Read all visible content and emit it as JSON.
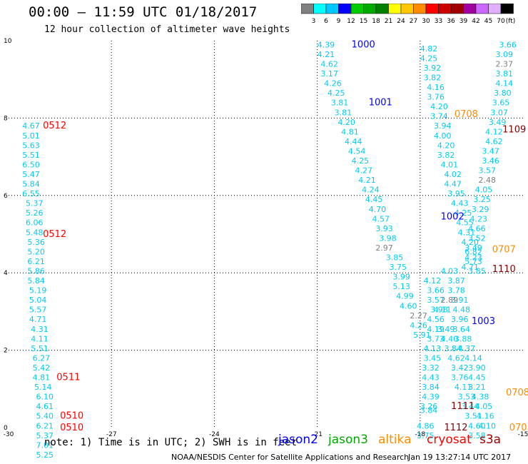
{
  "header": {
    "title": "00:00 – 11:59 UTC 01/18/2017",
    "subtitle": "12 hour collection of altimeter wave heights"
  },
  "colorbar": {
    "colors": [
      "#808080",
      "#00ffff",
      "#00c8ff",
      "#0000ff",
      "#00cc00",
      "#00aa00",
      "#008000",
      "#ffff00",
      "#ffc800",
      "#ff8c00",
      "#ff0000",
      "#cc0000",
      "#a00000",
      "#a000a0",
      "#cc66ff",
      "#e0b0ff",
      "#000000"
    ],
    "labels": [
      "3",
      "6",
      "9",
      "12",
      "15",
      "18",
      "21",
      "24",
      "27",
      "30",
      "33",
      "36",
      "39",
      "42",
      "45",
      "70"
    ],
    "unit": "(ft)"
  },
  "footer": {
    "note": "note: 1) Time is in UTC; 2) SWH is in feet",
    "credit": "NOAA/NESDIS Center for Satellite Applications and Research",
    "timestamp": "Jan 19 13:27:14 UTC 2017"
  },
  "legend": [
    {
      "name": "jason2",
      "color": "#0000ff"
    },
    {
      "name": "jason3",
      "color": "#00aa00"
    },
    {
      "name": "altika",
      "color": "#ff8c00"
    },
    {
      "name": "cryosat",
      "color": "#ff0000"
    },
    {
      "name": "s3a",
      "color": "#a00000"
    }
  ],
  "chart_data": {
    "type": "scatter",
    "xlim": [
      -30,
      -15
    ],
    "ylim": [
      0,
      10
    ],
    "xticks": [
      -30,
      -27,
      -24,
      -21,
      -18,
      -15
    ],
    "yticks": [
      0,
      2,
      4,
      6,
      8,
      10
    ],
    "grid": true,
    "labels": [
      {
        "text": "0512",
        "x": -29.0,
        "y": 7.8,
        "color": "#ff0000",
        "size": 13
      },
      {
        "text": "0512",
        "x": -29.0,
        "y": 5.0,
        "color": "#ff0000",
        "size": 13
      },
      {
        "text": "0511",
        "x": -28.6,
        "y": 1.3,
        "color": "#ff0000",
        "size": 13
      },
      {
        "text": "0510",
        "x": -28.5,
        "y": 0.3,
        "color": "#ff0000",
        "size": 13
      },
      {
        "text": "0510",
        "x": -28.5,
        "y": 0.0,
        "color": "#ff0000",
        "size": 13
      },
      {
        "text": "1000",
        "x": -20.0,
        "y": 9.9,
        "color": "#0000ff",
        "size": 13
      },
      {
        "text": "1001",
        "x": -19.5,
        "y": 8.4,
        "color": "#0000ff",
        "size": 13
      },
      {
        "text": "1002",
        "x": -17.4,
        "y": 5.45,
        "color": "#0000ff",
        "size": 13
      },
      {
        "text": "1003",
        "x": -16.5,
        "y": 2.75,
        "color": "#0000ff",
        "size": 13
      },
      {
        "text": "0708",
        "x": -17.0,
        "y": 8.1,
        "color": "#ff8c00",
        "size": 13
      },
      {
        "text": "0707",
        "x": -15.9,
        "y": 4.6,
        "color": "#ff8c00",
        "size": 13
      },
      {
        "text": "0708",
        "x": -15.5,
        "y": 0.9,
        "color": "#ff8c00",
        "size": 13
      },
      {
        "text": "070",
        "x": -15.4,
        "y": 0.0,
        "color": "#ff8c00",
        "size": 13
      },
      {
        "text": "1109",
        "x": -15.6,
        "y": 7.7,
        "color": "#800000",
        "size": 13
      },
      {
        "text": "1110",
        "x": -15.9,
        "y": 4.1,
        "color": "#800000",
        "size": 13
      },
      {
        "text": "1111",
        "x": -17.1,
        "y": 0.55,
        "color": "#800000",
        "size": 13
      },
      {
        "text": "1112",
        "x": -17.3,
        "y": 0.0,
        "color": "#800000",
        "size": 13
      }
    ],
    "series": [
      {
        "color": "#00ccee",
        "points": [
          {
            "x": -29.6,
            "y": 7.8,
            "v": "4.67"
          },
          {
            "x": -29.6,
            "y": 7.55,
            "v": "5.01"
          },
          {
            "x": -29.6,
            "y": 7.3,
            "v": "5.63"
          },
          {
            "x": -29.6,
            "y": 7.05,
            "v": "5.51"
          },
          {
            "x": -29.6,
            "y": 6.8,
            "v": "6.50"
          },
          {
            "x": -29.6,
            "y": 6.55,
            "v": "5.47"
          },
          {
            "x": -29.6,
            "y": 6.3,
            "v": "5.84"
          },
          {
            "x": -29.6,
            "y": 6.05,
            "v": "6.55"
          },
          {
            "x": -29.5,
            "y": 5.8,
            "v": "5.37"
          },
          {
            "x": -29.5,
            "y": 5.55,
            "v": "5.26"
          },
          {
            "x": -29.5,
            "y": 5.3,
            "v": "6.06"
          },
          {
            "x": -29.5,
            "y": 5.05,
            "v": "5.48"
          },
          {
            "x": -29.45,
            "y": 4.8,
            "v": "5.36"
          },
          {
            "x": -29.45,
            "y": 4.55,
            "v": "5.20"
          },
          {
            "x": -29.45,
            "y": 4.3,
            "v": "6.21"
          },
          {
            "x": -29.45,
            "y": 4.05,
            "v": "5.86"
          },
          {
            "x": -29.45,
            "y": 3.8,
            "v": "5.84"
          },
          {
            "x": -29.4,
            "y": 3.55,
            "v": "5.19"
          },
          {
            "x": -29.4,
            "y": 3.3,
            "v": "5.04"
          },
          {
            "x": -29.4,
            "y": 3.05,
            "v": "5.57"
          },
          {
            "x": -29.4,
            "y": 2.8,
            "v": "4.71"
          },
          {
            "x": -29.35,
            "y": 2.55,
            "v": "4.31"
          },
          {
            "x": -29.35,
            "y": 2.3,
            "v": "4.11"
          },
          {
            "x": -29.35,
            "y": 2.05,
            "v": "5.51"
          },
          {
            "x": -29.3,
            "y": 1.8,
            "v": "6.27"
          },
          {
            "x": -29.3,
            "y": 1.55,
            "v": "5.42"
          },
          {
            "x": -29.3,
            "y": 1.3,
            "v": "4.81"
          },
          {
            "x": -29.25,
            "y": 1.05,
            "v": "5.14"
          },
          {
            "x": -29.2,
            "y": 0.8,
            "v": "6.10"
          },
          {
            "x": -29.2,
            "y": 0.55,
            "v": "4.61"
          },
          {
            "x": -29.2,
            "y": 0.3,
            "v": "5.40"
          },
          {
            "x": -29.2,
            "y": 0.05,
            "v": "6.21"
          },
          {
            "x": -29.2,
            "y": -0.2,
            "v": "5.37"
          },
          {
            "x": -29.2,
            "y": -0.45,
            "v": "7.01"
          },
          {
            "x": -29.2,
            "y": -0.7,
            "v": "5.25"
          }
        ]
      },
      {
        "color": "#00ccee",
        "points": [
          {
            "x": -21.0,
            "y": 9.9,
            "v": "4.39"
          },
          {
            "x": -21.0,
            "y": 9.65,
            "v": "4.21"
          },
          {
            "x": -20.9,
            "y": 9.4,
            "v": "4.62"
          },
          {
            "x": -20.9,
            "y": 9.15,
            "v": "3.17"
          },
          {
            "x": -20.8,
            "y": 8.9,
            "v": "4.26"
          },
          {
            "x": -20.7,
            "y": 8.65,
            "v": "4.25"
          },
          {
            "x": -20.6,
            "y": 8.4,
            "v": "3.81"
          },
          {
            "x": -20.5,
            "y": 8.15,
            "v": "3.81"
          },
          {
            "x": -20.4,
            "y": 7.9,
            "v": "4.20"
          },
          {
            "x": -20.3,
            "y": 7.65,
            "v": "4.81"
          },
          {
            "x": -20.2,
            "y": 7.4,
            "v": "4.44"
          },
          {
            "x": -20.1,
            "y": 7.15,
            "v": "4.54"
          },
          {
            "x": -20.0,
            "y": 6.9,
            "v": "4.25"
          },
          {
            "x": -19.9,
            "y": 6.65,
            "v": "4.27"
          },
          {
            "x": -19.8,
            "y": 6.4,
            "v": "4.21"
          },
          {
            "x": -19.7,
            "y": 6.15,
            "v": "4.24"
          },
          {
            "x": -19.6,
            "y": 5.9,
            "v": "4.45"
          },
          {
            "x": -19.5,
            "y": 5.65,
            "v": "4.70"
          },
          {
            "x": -19.4,
            "y": 5.4,
            "v": "4.57"
          },
          {
            "x": -19.3,
            "y": 5.15,
            "v": "3.93"
          },
          {
            "x": -19.2,
            "y": 4.9,
            "v": "3.98"
          },
          {
            "x": -19.0,
            "y": 4.4,
            "v": "3.85"
          },
          {
            "x": -18.9,
            "y": 4.15,
            "v": "3.75"
          },
          {
            "x": -18.8,
            "y": 3.9,
            "v": "3.99"
          },
          {
            "x": -18.8,
            "y": 3.65,
            "v": "5.13"
          },
          {
            "x": -18.7,
            "y": 3.4,
            "v": "4.99"
          },
          {
            "x": -18.6,
            "y": 3.15,
            "v": "4.60"
          },
          {
            "x": -18.3,
            "y": 2.65,
            "v": "4.26"
          },
          {
            "x": -18.2,
            "y": 2.4,
            "v": "5.91"
          }
        ]
      },
      {
        "color": "#00ccee",
        "points": [
          {
            "x": -18.0,
            "y": 9.8,
            "v": "4.82"
          },
          {
            "x": -18.0,
            "y": 9.55,
            "v": "4.25"
          },
          {
            "x": -17.9,
            "y": 9.3,
            "v": "3.92"
          },
          {
            "x": -17.9,
            "y": 9.05,
            "v": "3.82"
          },
          {
            "x": -17.8,
            "y": 8.8,
            "v": "4.16"
          },
          {
            "x": -17.8,
            "y": 8.55,
            "v": "3.76"
          },
          {
            "x": -17.7,
            "y": 8.3,
            "v": "4.20"
          },
          {
            "x": -17.7,
            "y": 8.05,
            "v": "3.74"
          },
          {
            "x": -17.6,
            "y": 7.8,
            "v": "3.94"
          },
          {
            "x": -17.6,
            "y": 7.55,
            "v": "4.00"
          },
          {
            "x": -17.5,
            "y": 7.3,
            "v": "4.20"
          },
          {
            "x": -17.5,
            "y": 7.05,
            "v": "3.82"
          },
          {
            "x": -17.4,
            "y": 6.8,
            "v": "4.01"
          },
          {
            "x": -17.3,
            "y": 6.55,
            "v": "4.02"
          },
          {
            "x": -17.3,
            "y": 6.3,
            "v": "4.47"
          },
          {
            "x": -17.2,
            "y": 6.05,
            "v": "3.95"
          },
          {
            "x": -17.1,
            "y": 5.8,
            "v": "4.43"
          },
          {
            "x": -17.0,
            "y": 5.55,
            "v": "4.25"
          },
          {
            "x": -16.95,
            "y": 5.3,
            "v": "4.55"
          },
          {
            "x": -16.9,
            "y": 5.05,
            "v": "4.31"
          },
          {
            "x": -16.8,
            "y": 4.8,
            "v": "4.20"
          },
          {
            "x": -16.7,
            "y": 4.55,
            "v": "6.82"
          },
          {
            "x": -16.7,
            "y": 4.3,
            "v": "5.73"
          },
          {
            "x": -16.6,
            "y": 4.05,
            "v": "3.85"
          }
        ]
      },
      {
        "color": "#00ccee",
        "points": [
          {
            "x": -15.7,
            "y": 9.9,
            "v": "3.66"
          },
          {
            "x": -15.8,
            "y": 9.65,
            "v": "3.09"
          },
          {
            "x": -15.8,
            "y": 9.15,
            "v": "3.81"
          },
          {
            "x": -15.8,
            "y": 8.9,
            "v": "4.14"
          },
          {
            "x": -15.85,
            "y": 8.65,
            "v": "3.80"
          },
          {
            "x": -15.9,
            "y": 8.4,
            "v": "3.65"
          },
          {
            "x": -15.95,
            "y": 8.15,
            "v": "3.07"
          },
          {
            "x": -16.0,
            "y": 7.9,
            "v": "3.49"
          },
          {
            "x": -16.1,
            "y": 7.65,
            "v": "4.12"
          },
          {
            "x": -16.1,
            "y": 7.4,
            "v": "4.62"
          },
          {
            "x": -16.2,
            "y": 7.15,
            "v": "3.47"
          },
          {
            "x": -16.2,
            "y": 6.9,
            "v": "3.46"
          },
          {
            "x": -16.3,
            "y": 6.65,
            "v": "3.57"
          },
          {
            "x": -16.4,
            "y": 6.15,
            "v": "4.05"
          },
          {
            "x": -16.45,
            "y": 5.9,
            "v": "3.25"
          },
          {
            "x": -16.5,
            "y": 5.65,
            "v": "3.29"
          },
          {
            "x": -16.55,
            "y": 5.4,
            "v": "4.23"
          },
          {
            "x": -16.6,
            "y": 5.15,
            "v": "4.66"
          },
          {
            "x": -16.6,
            "y": 4.9,
            "v": "3.52"
          },
          {
            "x": -16.7,
            "y": 4.65,
            "v": "3.49"
          },
          {
            "x": -16.7,
            "y": 4.4,
            "v": "4.23"
          },
          {
            "x": -16.8,
            "y": 4.15,
            "v": "4.71"
          }
        ]
      },
      {
        "color": "#00ccee",
        "points": [
          {
            "x": -17.9,
            "y": 3.8,
            "v": "4.12"
          },
          {
            "x": -17.8,
            "y": 3.55,
            "v": "3.66"
          },
          {
            "x": -17.8,
            "y": 3.3,
            "v": "3.57"
          },
          {
            "x": -17.7,
            "y": 3.05,
            "v": "3.98"
          },
          {
            "x": -17.8,
            "y": 2.8,
            "v": "4.56"
          },
          {
            "x": -17.8,
            "y": 2.55,
            "v": "4.19"
          },
          {
            "x": -17.8,
            "y": 2.3,
            "v": "3.73"
          },
          {
            "x": -17.9,
            "y": 2.05,
            "v": "4.13"
          },
          {
            "x": -17.9,
            "y": 1.8,
            "v": "3.45"
          },
          {
            "x": -17.95,
            "y": 1.55,
            "v": "3.32"
          },
          {
            "x": -17.95,
            "y": 1.3,
            "v": "4.43"
          },
          {
            "x": -17.95,
            "y": 1.05,
            "v": "3.84"
          },
          {
            "x": -17.95,
            "y": 0.8,
            "v": "4.39"
          },
          {
            "x": -18.0,
            "y": 0.55,
            "v": "3.26"
          },
          {
            "x": -18.0,
            "y": 0.45,
            "v": "3.84"
          },
          {
            "x": -18.1,
            "y": 0.05,
            "v": "4.86"
          },
          {
            "x": -18.1,
            "y": -0.2,
            "v": "3.75"
          }
        ]
      },
      {
        "color": "#00ccee",
        "points": [
          {
            "x": -17.4,
            "y": 4.05,
            "v": "4.03"
          },
          {
            "x": -17.2,
            "y": 3.8,
            "v": "3.87"
          },
          {
            "x": -17.2,
            "y": 3.55,
            "v": "3.78"
          },
          {
            "x": -17.1,
            "y": 3.3,
            "v": "3.91"
          },
          {
            "x": -17.05,
            "y": 3.05,
            "v": "4.48"
          },
          {
            "x": -17.1,
            "y": 2.8,
            "v": "3.96"
          },
          {
            "x": -17.05,
            "y": 2.55,
            "v": "3.64"
          },
          {
            "x": -17.0,
            "y": 2.3,
            "v": "3.88"
          },
          {
            "x": -16.9,
            "y": 2.05,
            "v": "4.37"
          },
          {
            "x": -16.7,
            "y": 1.8,
            "v": "4.14"
          },
          {
            "x": -16.6,
            "y": 1.55,
            "v": "3.90"
          },
          {
            "x": -16.6,
            "y": 1.3,
            "v": "4.45"
          },
          {
            "x": -16.6,
            "y": 1.05,
            "v": "3.21"
          },
          {
            "x": -16.5,
            "y": 0.8,
            "v": "4.38"
          },
          {
            "x": -16.4,
            "y": 0.55,
            "v": "4.05"
          },
          {
            "x": -16.35,
            "y": 0.3,
            "v": "4.16"
          },
          {
            "x": -16.3,
            "y": 0.05,
            "v": "4.10"
          }
        ]
      },
      {
        "color": "#00ccee",
        "points": [
          {
            "x": -17.6,
            "y": 3.05,
            "v": "4.11"
          },
          {
            "x": -17.5,
            "y": 2.55,
            "v": "3.49"
          },
          {
            "x": -17.4,
            "y": 2.3,
            "v": "4.40"
          },
          {
            "x": -17.3,
            "y": 2.05,
            "v": "3.84"
          },
          {
            "x": -17.2,
            "y": 1.8,
            "v": "4.62"
          },
          {
            "x": -17.1,
            "y": 1.55,
            "v": "3.42"
          },
          {
            "x": -17.1,
            "y": 1.3,
            "v": "3.76"
          },
          {
            "x": -17.0,
            "y": 1.05,
            "v": "4.11"
          },
          {
            "x": -16.9,
            "y": 0.8,
            "v": "3.53"
          },
          {
            "x": -16.8,
            "y": 0.55,
            "v": "3.44"
          },
          {
            "x": -16.7,
            "y": 0.3,
            "v": "3.51"
          },
          {
            "x": -16.6,
            "y": 0.05,
            "v": "4.60"
          },
          {
            "x": -16.6,
            "y": -0.2,
            "v": "3.58"
          }
        ]
      },
      {
        "color": "#808080",
        "points": [
          {
            "x": -15.8,
            "y": 9.4,
            "v": "2.37"
          },
          {
            "x": -16.3,
            "y": 6.4,
            "v": "2.48"
          },
          {
            "x": -19.3,
            "y": 4.65,
            "v": "2.97"
          },
          {
            "x": -18.3,
            "y": 2.9,
            "v": "2.27"
          },
          {
            "x": -17.4,
            "y": 3.3,
            "v": "2.89"
          }
        ]
      }
    ]
  }
}
